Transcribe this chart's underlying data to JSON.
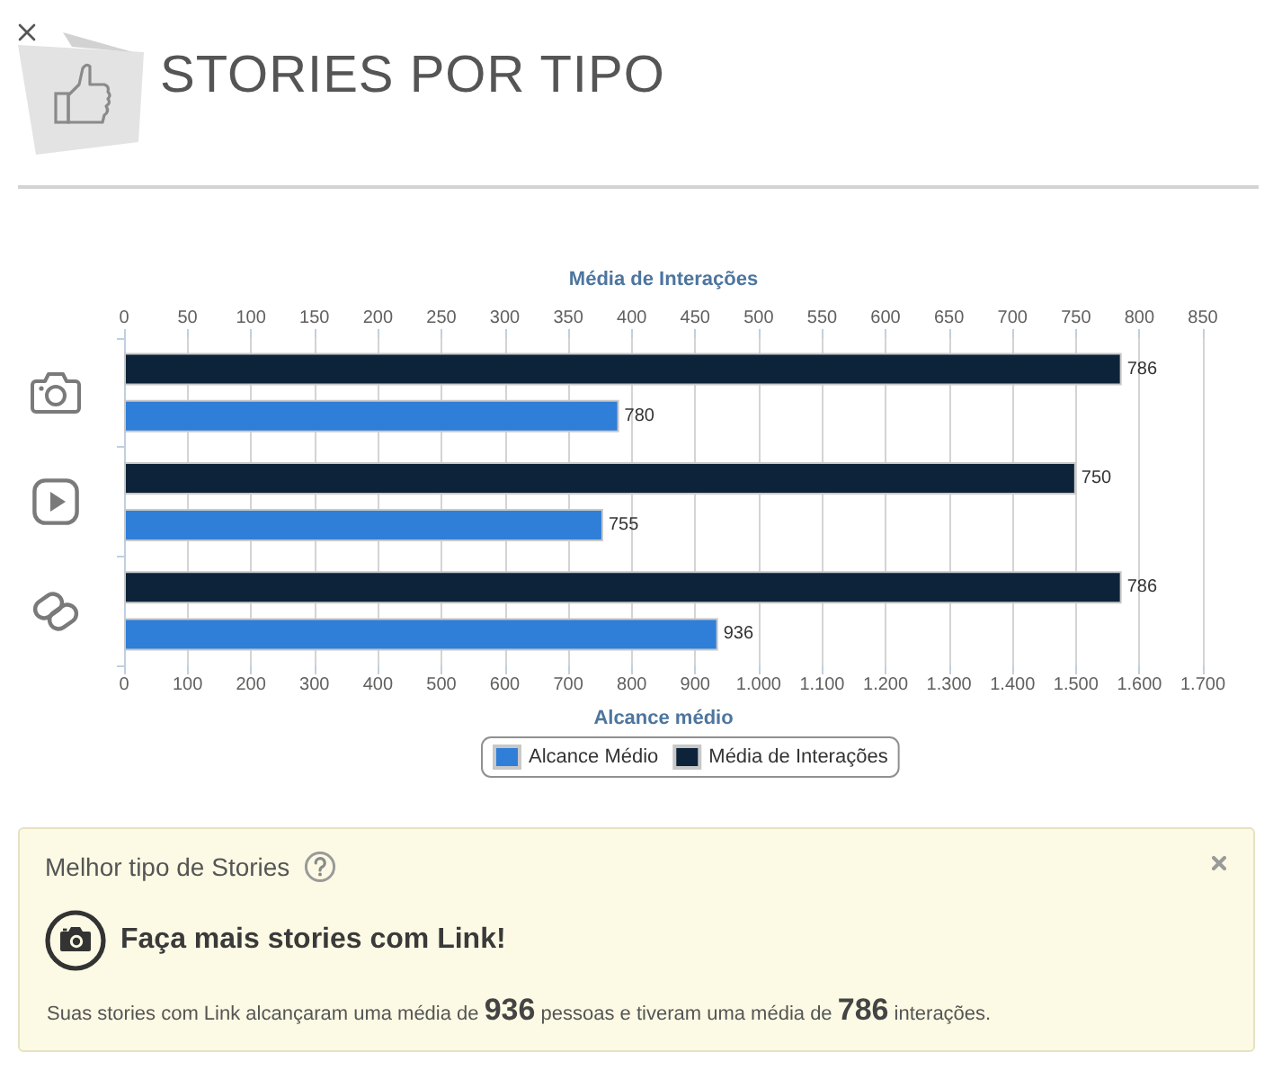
{
  "chart_data": {
    "type": "bar",
    "orientation": "horizontal",
    "title": "STORIES POR TIPO",
    "xlabel": "Alcance médio",
    "x2label": "Média de Interações",
    "categories": [
      null,
      null,
      null
    ],
    "series": [
      {
        "name": "Alcance Médio",
        "color": "#2f7ed8",
        "values": [
          780,
          755,
          936
        ]
      },
      {
        "name": "Média de Interações",
        "color": "#0d233a",
        "axis": "x2",
        "values": [
          786,
          750,
          786
        ]
      }
    ],
    "xlim": [
      0,
      1700
    ],
    "xticks": [
      0,
      100,
      200,
      300,
      400,
      500,
      600,
      700,
      800,
      900,
      {
        "value": 1000,
        "label": "1.000"
      },
      {
        "value": 1100,
        "label": "1.100"
      },
      {
        "value": 1200,
        "label": "1.200"
      },
      {
        "value": 1300,
        "label": "1.300"
      },
      {
        "value": 1400,
        "label": "1.400"
      },
      {
        "value": 1500,
        "label": "1.500"
      },
      {
        "value": 1600,
        "label": "1.600"
      },
      {
        "value": 1700,
        "label": "1.700"
      }
    ],
    "x2lim": [
      0,
      850
    ],
    "x2ticks": [
      0,
      50,
      100,
      150,
      200,
      250,
      300,
      350,
      400,
      450,
      500,
      550,
      600,
      650,
      700,
      750,
      800,
      850
    ],
    "grid": "x",
    "legend": "bottom",
    "data_labels": true,
    "annotations": [
      "Melhor tipo de Stories",
      "Faça mais stories com Link!",
      "Suas stories com Link alcançaram uma média de 936 pessoas e tiveram uma média de 786 interações."
    ]
  }
}
